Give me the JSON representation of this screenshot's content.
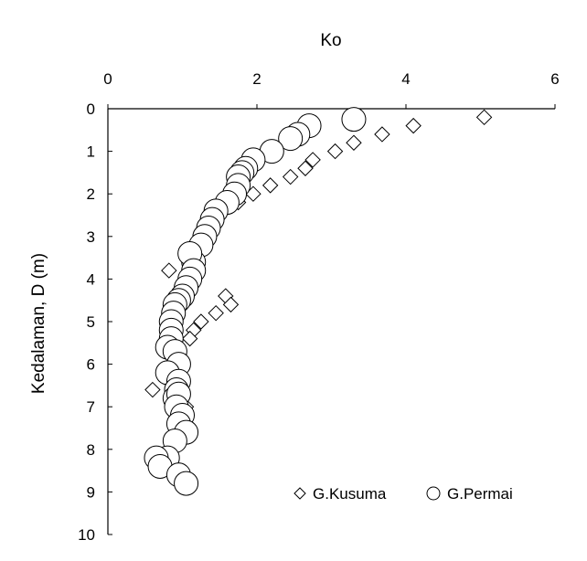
{
  "chart_data": {
    "type": "scatter",
    "title": "",
    "xlabel": "Ko",
    "ylabel": "Kedalaman, D (m)",
    "xlim": [
      0,
      6
    ],
    "ylim": [
      0,
      10
    ],
    "x_axis_position": "top",
    "y_axis_inverted": true,
    "xticks": [
      "0",
      "2",
      "4",
      "6"
    ],
    "yticks": [
      "0",
      "1",
      "2",
      "3",
      "4",
      "5",
      "6",
      "7",
      "8",
      "9",
      "10"
    ],
    "grid": false,
    "legend_position": "bottom-right",
    "series": [
      {
        "name": "G.Kusuma",
        "marker": "diamond",
        "x": [
          5.05,
          4.1,
          3.68,
          3.3,
          3.05,
          2.75,
          2.65,
          2.45,
          2.18,
          1.95,
          1.75,
          1.3,
          0.82,
          1.58,
          1.65,
          1.45,
          1.25,
          1.15,
          1.1,
          0.6,
          1.05
        ],
        "y": [
          0.2,
          0.4,
          0.6,
          0.8,
          1.0,
          1.2,
          1.4,
          1.6,
          1.8,
          2.0,
          2.2,
          2.8,
          3.8,
          4.4,
          4.6,
          4.8,
          5.0,
          5.2,
          5.4,
          6.6,
          7.0
        ]
      },
      {
        "name": "G.Permai",
        "marker": "circle",
        "x": [
          3.3,
          2.7,
          2.55,
          2.45,
          2.2,
          1.95,
          1.85,
          1.8,
          1.75,
          1.75,
          1.7,
          1.6,
          1.45,
          1.4,
          1.35,
          1.3,
          1.25,
          1.15,
          1.1,
          1.15,
          1.1,
          1.05,
          1.0,
          0.95,
          0.9,
          0.88,
          0.85,
          0.85,
          0.85,
          0.8,
          0.9,
          0.95,
          0.8,
          0.95,
          0.92,
          0.9,
          0.95,
          0.92,
          1.0,
          0.95,
          1.05,
          0.9,
          0.8,
          0.65,
          0.7,
          0.95,
          1.05
        ],
        "y": [
          0.25,
          0.4,
          0.6,
          0.7,
          1.0,
          1.2,
          1.4,
          1.5,
          1.6,
          1.8,
          2.0,
          2.2,
          2.4,
          2.6,
          2.8,
          3.0,
          3.2,
          3.6,
          3.4,
          3.8,
          4.0,
          4.2,
          4.4,
          4.5,
          4.6,
          4.8,
          5.0,
          5.2,
          5.4,
          5.6,
          5.7,
          6.0,
          6.2,
          6.4,
          6.6,
          6.8,
          6.7,
          7.0,
          7.2,
          7.4,
          7.6,
          7.8,
          8.2,
          8.2,
          8.4,
          8.6,
          8.8
        ]
      }
    ]
  }
}
